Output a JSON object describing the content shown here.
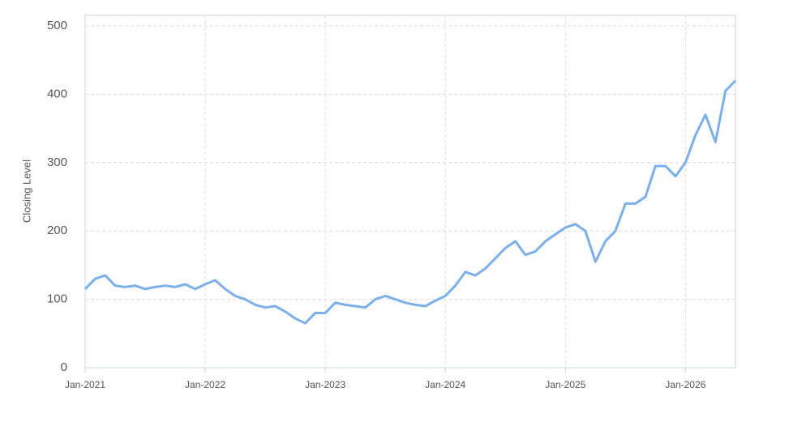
{
  "chart_data": {
    "type": "line",
    "ylabel": "Closing Level",
    "x": [
      "2021-01",
      "2021-02",
      "2021-03",
      "2021-04",
      "2021-05",
      "2021-06",
      "2021-07",
      "2021-08",
      "2021-09",
      "2021-10",
      "2021-11",
      "2021-12",
      "2022-01",
      "2022-02",
      "2022-03",
      "2022-04",
      "2022-05",
      "2022-06",
      "2022-07",
      "2022-08",
      "2022-09",
      "2022-10",
      "2022-11",
      "2022-12",
      "2023-01",
      "2023-02",
      "2023-03",
      "2023-04",
      "2023-05",
      "2023-06",
      "2023-07",
      "2023-08",
      "2023-09",
      "2023-10",
      "2023-11",
      "2023-12",
      "2024-01",
      "2024-02",
      "2024-03",
      "2024-04",
      "2024-05",
      "2024-06",
      "2024-07",
      "2024-08",
      "2024-09",
      "2024-10",
      "2024-11",
      "2024-12",
      "2025-01",
      "2025-02",
      "2025-03",
      "2025-04",
      "2025-05",
      "2025-06",
      "2025-07",
      "2025-08",
      "2025-09",
      "2025-10",
      "2025-11",
      "2025-12",
      "2026-01",
      "2026-02",
      "2026-03",
      "2026-04",
      "2026-05",
      "2026-06"
    ],
    "series": [
      {
        "name": "Closing Level",
        "color": "#7cb0e8",
        "values": [
          115,
          130,
          135,
          120,
          118,
          120,
          115,
          118,
          120,
          118,
          122,
          115,
          122,
          128,
          115,
          105,
          100,
          92,
          88,
          90,
          82,
          72,
          65,
          80,
          80,
          95,
          92,
          90,
          88,
          100,
          105,
          100,
          95,
          92,
          90,
          98,
          105,
          120,
          140,
          135,
          145,
          160,
          175,
          185,
          165,
          170,
          185,
          195,
          205,
          210,
          200,
          155,
          185,
          200,
          240,
          240,
          250,
          295,
          295,
          280,
          300,
          340,
          370,
          330,
          405,
          420
        ]
      }
    ],
    "xlim": [
      "2021-01",
      "2026-06"
    ],
    "xticks": [
      {
        "value": "2021-01",
        "label": "Jan-2021"
      },
      {
        "value": "2022-01",
        "label": "Jan-2022"
      },
      {
        "value": "2023-01",
        "label": "Jan-2023"
      },
      {
        "value": "2024-01",
        "label": "Jan-2024"
      },
      {
        "value": "2025-01",
        "label": "Jan-2025"
      },
      {
        "value": "2026-01",
        "label": "Jan-2026"
      }
    ],
    "ylim": [
      0,
      500
    ],
    "yticks": [
      0,
      100,
      200,
      300,
      400,
      500
    ],
    "grid": true
  }
}
